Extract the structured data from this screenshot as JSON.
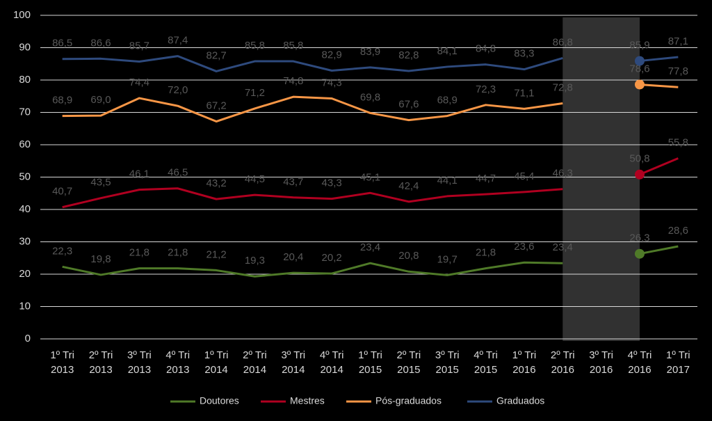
{
  "chart_data": {
    "type": "line",
    "categories": [
      "1º Tri 2013",
      "2º Tri 2013",
      "3º Tri 2013",
      "4º Tri 2013",
      "1º Tri 2014",
      "2º Tri 2014",
      "3º Tri 2014",
      "4º Tri 2014",
      "1º Tri 2015",
      "2º Tri 2015",
      "3º Tri 2015",
      "4º Tri 2015",
      "1º Tri 2016",
      "2º Tri 2016",
      "3º Tri 2016",
      "4º Tri 2016",
      "1º Tri 2017"
    ],
    "series": [
      {
        "name": "Doutores",
        "color": "#4f7a28",
        "values": [
          22.3,
          19.8,
          21.8,
          21.8,
          21.2,
          19.3,
          20.4,
          20.2,
          23.4,
          20.8,
          19.7,
          21.8,
          23.6,
          23.4,
          null,
          26.3,
          28.6
        ],
        "value_labels": [
          "22,3",
          "19,8",
          "21,8",
          "21,8",
          "21,2",
          "19,3",
          "20,4",
          "20,2",
          "23,4",
          "20,8",
          "19,7",
          "21,8",
          "23,6",
          "23,4",
          null,
          "26,3",
          "28,6"
        ]
      },
      {
        "name": "Mestres",
        "color": "#b00020",
        "values": [
          40.7,
          43.5,
          46.1,
          46.5,
          43.2,
          44.5,
          43.7,
          43.3,
          45.1,
          42.4,
          44.1,
          44.7,
          45.4,
          46.3,
          null,
          50.8,
          55.8
        ],
        "value_labels": [
          "40,7",
          "43,5",
          "46,1",
          "46,5",
          "43,2",
          "44,5",
          "43,7",
          "43,3",
          "45,1",
          "42,4",
          "44,1",
          "44,7",
          "45,4",
          "46,3",
          null,
          "50,8",
          "55,8"
        ]
      },
      {
        "name": "Pós-graduados",
        "color": "#f79646",
        "values": [
          68.9,
          69.0,
          74.4,
          72.0,
          67.2,
          71.2,
          74.8,
          74.3,
          69.8,
          67.6,
          68.9,
          72.3,
          71.1,
          72.8,
          null,
          78.6,
          77.8
        ],
        "value_labels": [
          "68,9",
          "69,0",
          "74,4",
          "72,0",
          "67,2",
          "71,2",
          "74,8",
          "74,3",
          "69,8",
          "67,6",
          "68,9",
          "72,3",
          "71,1",
          "72,8",
          null,
          "78,6",
          "77,8"
        ]
      },
      {
        "name": "Graduados",
        "color": "#2e4a7d",
        "values": [
          86.5,
          86.6,
          85.7,
          87.4,
          82.7,
          85.8,
          85.8,
          82.9,
          83.9,
          82.8,
          84.1,
          84.8,
          83.3,
          86.8,
          null,
          85.9,
          87.1
        ],
        "value_labels": [
          "86,5",
          "86,6",
          "85,7",
          "87,4",
          "82,7",
          "85,8",
          "85,8",
          "82,9",
          "83,9",
          "82,8",
          "84,1",
          "84,8",
          "83,3",
          "86,8",
          null,
          "85,9",
          "87,1"
        ]
      }
    ],
    "ylim": [
      0,
      100
    ],
    "yticks": [
      0,
      10,
      20,
      30,
      40,
      50,
      60,
      70,
      80,
      90,
      100
    ],
    "grid": true,
    "legend": "bottom"
  }
}
